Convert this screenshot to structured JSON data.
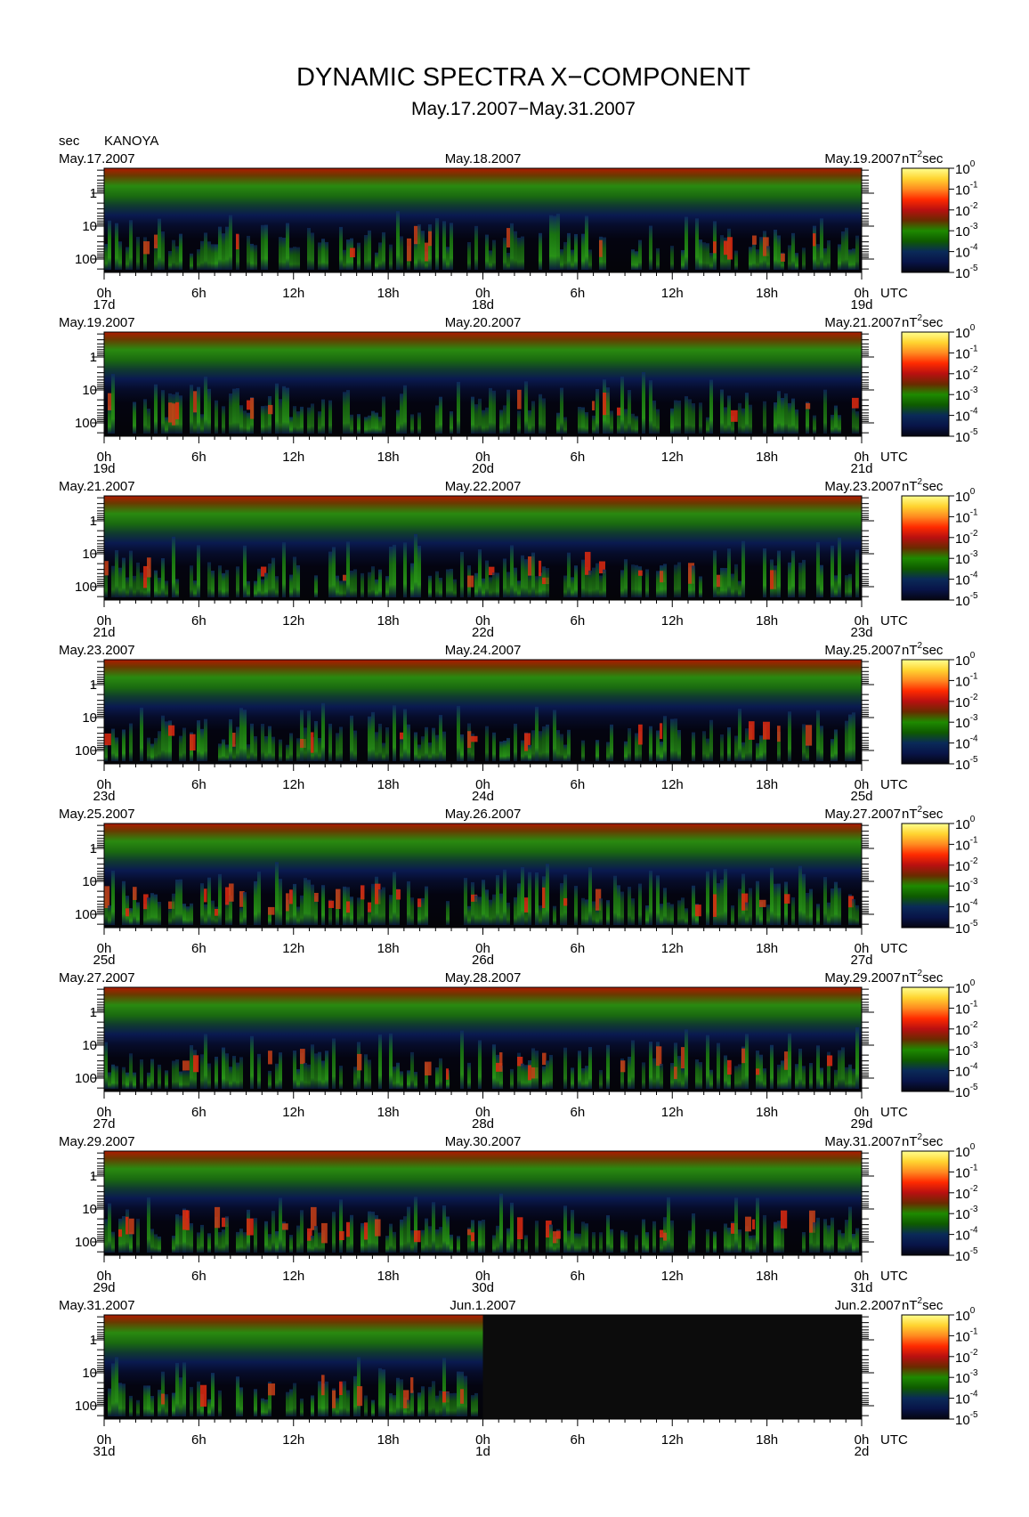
{
  "title": "DYNAMIC SPECTRA X−COMPONENT",
  "subtitle": "May.17.2007−May.31.2007",
  "station": "KANOYA",
  "y_unit": "sec",
  "power_unit": "nT",
  "power_unit_exp": "2",
  "power_unit_suffix": "sec",
  "x_suffix": "UTC",
  "chart_data": {
    "type": "heatmap",
    "y_axis": {
      "label": "sec",
      "scale": "log",
      "ticks": [
        "1",
        "10",
        "100"
      ],
      "inverted": true
    },
    "x_axis": {
      "label": "UTC",
      "ticks": [
        "0h",
        "6h",
        "12h",
        "18h",
        "0h",
        "6h",
        "12h",
        "18h",
        "0h"
      ]
    },
    "colorbar": {
      "label": "nT²sec",
      "ticks": [
        {
          "base": "10",
          "exp": "0"
        },
        {
          "base": "10",
          "exp": "-1"
        },
        {
          "base": "10",
          "exp": "-2"
        },
        {
          "base": "10",
          "exp": "-3"
        },
        {
          "base": "10",
          "exp": "-4"
        },
        {
          "base": "10",
          "exp": "-5"
        }
      ],
      "colors": [
        "#ffff80",
        "#ffd030",
        "#ff8020",
        "#ff2000",
        "#c81010",
        "#8a2a00",
        "#1e8a00",
        "#0e5a00",
        "#0a2a48",
        "#081448",
        "#050510"
      ]
    },
    "panels": [
      {
        "left": "May.17.2007",
        "mid": "May.18.2007",
        "right": "May.19.2007",
        "days": [
          "17d",
          "18d",
          "19d"
        ],
        "data_fraction": 1.0
      },
      {
        "left": "May.19.2007",
        "mid": "May.20.2007",
        "right": "May.21.2007",
        "days": [
          "19d",
          "20d",
          "21d"
        ],
        "data_fraction": 1.0
      },
      {
        "left": "May.21.2007",
        "mid": "May.22.2007",
        "right": "May.23.2007",
        "days": [
          "21d",
          "22d",
          "23d"
        ],
        "data_fraction": 1.0
      },
      {
        "left": "May.23.2007",
        "mid": "May.24.2007",
        "right": "May.25.2007",
        "days": [
          "23d",
          "24d",
          "25d"
        ],
        "data_fraction": 1.0
      },
      {
        "left": "May.25.2007",
        "mid": "May.26.2007",
        "right": "May.27.2007",
        "days": [
          "25d",
          "26d",
          "27d"
        ],
        "data_fraction": 1.0
      },
      {
        "left": "May.27.2007",
        "mid": "May.28.2007",
        "right": "May.29.2007",
        "days": [
          "27d",
          "28d",
          "29d"
        ],
        "data_fraction": 1.0
      },
      {
        "left": "May.29.2007",
        "mid": "May.30.2007",
        "right": "May.31.2007",
        "days": [
          "29d",
          "30d",
          "31d"
        ],
        "data_fraction": 1.0
      },
      {
        "left": "May.31.2007",
        "mid": "Jun.1.2007",
        "right": "Jun.2.2007",
        "days": [
          "31d",
          "1d",
          "2d"
        ],
        "data_fraction": 0.5
      }
    ]
  }
}
